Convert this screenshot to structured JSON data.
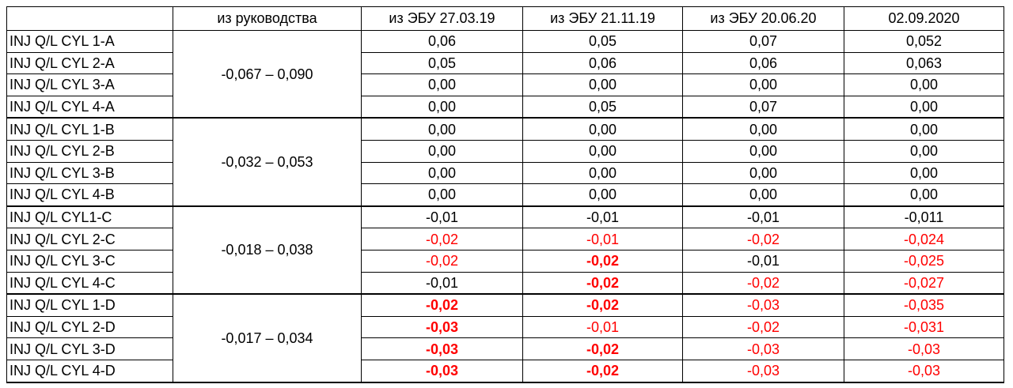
{
  "table": {
    "header": [
      "из руководства",
      "из ЭБУ 27.03.19",
      "из ЭБУ 21.11.19",
      "из ЭБУ 20.06.20",
      "02.09.2020"
    ],
    "groups": [
      {
        "range": "-0,067 – 0,090",
        "rows": [
          {
            "label": "INJ Q/L CYL 1-A",
            "cells": [
              {
                "text": "0,06",
                "style": "black"
              },
              {
                "text": "0,05",
                "style": "black"
              },
              {
                "text": "0,07",
                "style": "black"
              },
              {
                "text": "0,052",
                "style": "black"
              }
            ]
          },
          {
            "label": "INJ Q/L CYL 2-A",
            "cells": [
              {
                "text": "0,05",
                "style": "black"
              },
              {
                "text": "0,06",
                "style": "black"
              },
              {
                "text": "0,06",
                "style": "black"
              },
              {
                "text": "0,063",
                "style": "black"
              }
            ]
          },
          {
            "label": "INJ Q/L CYL 3-A",
            "cells": [
              {
                "text": "0,00",
                "style": "black"
              },
              {
                "text": "0,00",
                "style": "black"
              },
              {
                "text": "0,00",
                "style": "black"
              },
              {
                "text": "0,00",
                "style": "black"
              }
            ]
          },
          {
            "label": "INJ Q/L CYL 4-A",
            "cells": [
              {
                "text": "0,00",
                "style": "black"
              },
              {
                "text": "0,05",
                "style": "black"
              },
              {
                "text": "0,07",
                "style": "black"
              },
              {
                "text": "0,00",
                "style": "black"
              }
            ]
          }
        ]
      },
      {
        "range": "-0,032 – 0,053",
        "rows": [
          {
            "label": "INJ Q/L CYL 1-B",
            "cells": [
              {
                "text": "0,00",
                "style": "black"
              },
              {
                "text": "0,00",
                "style": "black"
              },
              {
                "text": "0,00",
                "style": "black"
              },
              {
                "text": "0,00",
                "style": "black"
              }
            ]
          },
          {
            "label": "INJ Q/L CYL 2-B",
            "cells": [
              {
                "text": "0,00",
                "style": "black"
              },
              {
                "text": "0,00",
                "style": "black"
              },
              {
                "text": "0,00",
                "style": "black"
              },
              {
                "text": "0,00",
                "style": "black"
              }
            ]
          },
          {
            "label": "INJ Q/L CYL 3-B",
            "cells": [
              {
                "text": "0,00",
                "style": "black"
              },
              {
                "text": "0,00",
                "style": "black"
              },
              {
                "text": "0,00",
                "style": "black"
              },
              {
                "text": "0,00",
                "style": "black"
              }
            ]
          },
          {
            "label": "INJ Q/L CYL 4-B",
            "cells": [
              {
                "text": "0,00",
                "style": "black"
              },
              {
                "text": "0,00",
                "style": "black"
              },
              {
                "text": "0,00",
                "style": "black"
              },
              {
                "text": "0,00",
                "style": "black"
              }
            ]
          }
        ]
      },
      {
        "range": "-0,018 – 0,038",
        "rows": [
          {
            "label": "INJ Q/L CYL1-C",
            "cells": [
              {
                "text": "-0,01",
                "style": "black"
              },
              {
                "text": "-0,01",
                "style": "black"
              },
              {
                "text": "-0,01",
                "style": "black"
              },
              {
                "text": "-0,011",
                "style": "black"
              }
            ]
          },
          {
            "label": "INJ Q/L CYL 2-C",
            "cells": [
              {
                "text": "-0,02",
                "style": "red"
              },
              {
                "text": "-0,01",
                "style": "red"
              },
              {
                "text": "-0,02",
                "style": "red"
              },
              {
                "text": "-0,024",
                "style": "red"
              }
            ]
          },
          {
            "label": "INJ Q/L CYL 3-C",
            "cells": [
              {
                "text": "-0,02",
                "style": "red"
              },
              {
                "text": "-0,02",
                "style": "red-bold"
              },
              {
                "text": "-0,01",
                "style": "black"
              },
              {
                "text": "-0,025",
                "style": "red"
              }
            ]
          },
          {
            "label": "INJ Q/L CYL 4-C",
            "cells": [
              {
                "text": "-0,01",
                "style": "black"
              },
              {
                "text": "-0,02",
                "style": "red-bold"
              },
              {
                "text": "-0,02",
                "style": "red"
              },
              {
                "text": "-0,027",
                "style": "red"
              }
            ]
          }
        ]
      },
      {
        "range": "-0,017 – 0,034",
        "rows": [
          {
            "label": "INJ Q/L CYL 1-D",
            "cells": [
              {
                "text": "-0,02",
                "style": "red-bold"
              },
              {
                "text": "-0,02",
                "style": "red-bold"
              },
              {
                "text": "-0,03",
                "style": "red"
              },
              {
                "text": "-0,035",
                "style": "red"
              }
            ]
          },
          {
            "label": "INJ Q/L CYL 2-D",
            "cells": [
              {
                "text": "-0,03",
                "style": "red-bold"
              },
              {
                "text": "-0,01",
                "style": "red"
              },
              {
                "text": "-0,02",
                "style": "red"
              },
              {
                "text": "-0,031",
                "style": "red"
              }
            ]
          },
          {
            "label": "INJ Q/L CYL 3-D",
            "cells": [
              {
                "text": "-0,03",
                "style": "red-bold"
              },
              {
                "text": "-0,02",
                "style": "red-bold"
              },
              {
                "text": "-0,03",
                "style": "red"
              },
              {
                "text": "-0,03",
                "style": "red"
              }
            ]
          },
          {
            "label": "INJ Q/L CYL 4-D",
            "cells": [
              {
                "text": "-0,03",
                "style": "red-bold"
              },
              {
                "text": "-0,02",
                "style": "red-bold"
              },
              {
                "text": "-0,03",
                "style": "red"
              },
              {
                "text": "-0,03",
                "style": "red"
              }
            ]
          }
        ]
      }
    ]
  }
}
